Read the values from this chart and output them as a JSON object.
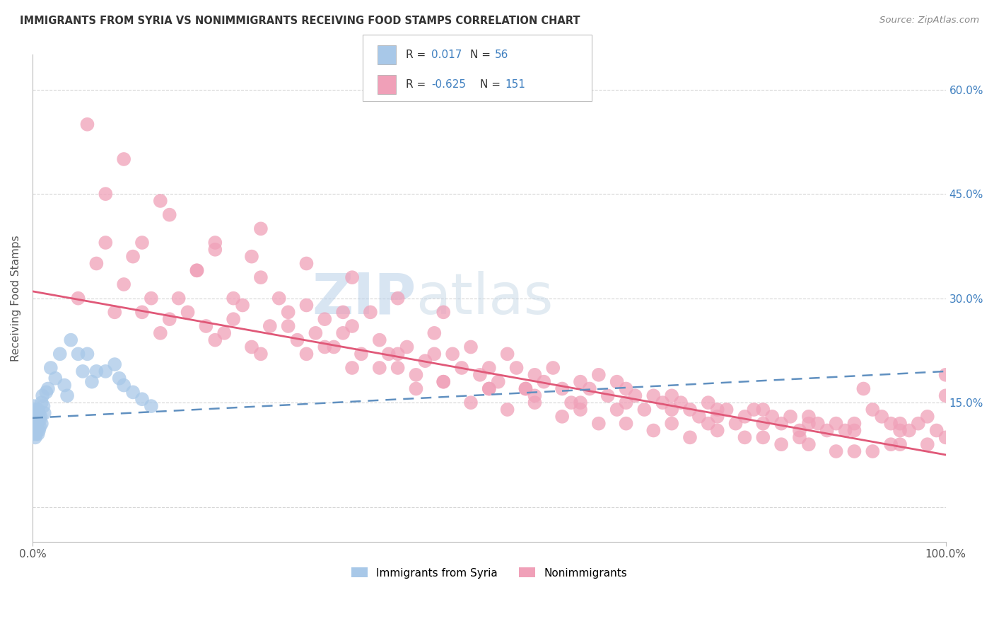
{
  "title": "IMMIGRANTS FROM SYRIA VS NONIMMIGRANTS RECEIVING FOOD STAMPS CORRELATION CHART",
  "source": "Source: ZipAtlas.com",
  "ylabel": "Receiving Food Stamps",
  "color_blue": "#A8C8E8",
  "color_pink": "#F0A0B8",
  "color_blue_line": "#6090C0",
  "color_pink_line": "#E05878",
  "background_color": "#FFFFFF",
  "grid_color": "#CCCCCC",
  "xlim": [
    0.0,
    1.0
  ],
  "ylim": [
    -0.05,
    0.65
  ],
  "ytick_vals": [
    0.0,
    0.15,
    0.3,
    0.45,
    0.6
  ],
  "right_ytick_labels": [
    "",
    "15.0%",
    "30.0%",
    "45.0%",
    "60.0%"
  ],
  "legend_color": "#4080C0",
  "watermark_zip_color": "#B8D4EC",
  "watermark_atlas_color": "#C8D8E8",
  "syria_x": [
    0.001,
    0.001,
    0.001,
    0.001,
    0.001,
    0.001,
    0.001,
    0.001,
    0.002,
    0.002,
    0.002,
    0.002,
    0.002,
    0.002,
    0.003,
    0.003,
    0.003,
    0.003,
    0.004,
    0.004,
    0.004,
    0.005,
    0.005,
    0.005,
    0.006,
    0.006,
    0.007,
    0.007,
    0.008,
    0.008,
    0.009,
    0.01,
    0.01,
    0.011,
    0.012,
    0.013,
    0.015,
    0.017,
    0.02,
    0.025,
    0.03,
    0.035,
    0.038,
    0.042,
    0.05,
    0.055,
    0.06,
    0.065,
    0.07,
    0.08,
    0.09,
    0.095,
    0.1,
    0.11,
    0.12,
    0.13
  ],
  "syria_y": [
    0.125,
    0.13,
    0.135,
    0.14,
    0.12,
    0.115,
    0.145,
    0.11,
    0.13,
    0.125,
    0.12,
    0.115,
    0.11,
    0.105,
    0.135,
    0.12,
    0.11,
    0.1,
    0.13,
    0.115,
    0.105,
    0.125,
    0.12,
    0.115,
    0.14,
    0.105,
    0.135,
    0.11,
    0.125,
    0.115,
    0.13,
    0.15,
    0.12,
    0.16,
    0.145,
    0.135,
    0.165,
    0.17,
    0.2,
    0.185,
    0.22,
    0.175,
    0.16,
    0.24,
    0.22,
    0.195,
    0.22,
    0.18,
    0.195,
    0.195,
    0.205,
    0.185,
    0.175,
    0.165,
    0.155,
    0.145
  ],
  "nonimm_x": [
    0.05,
    0.07,
    0.08,
    0.09,
    0.1,
    0.11,
    0.12,
    0.13,
    0.14,
    0.15,
    0.16,
    0.17,
    0.18,
    0.19,
    0.2,
    0.2,
    0.21,
    0.22,
    0.23,
    0.24,
    0.25,
    0.25,
    0.26,
    0.27,
    0.28,
    0.29,
    0.3,
    0.3,
    0.31,
    0.32,
    0.33,
    0.34,
    0.35,
    0.35,
    0.36,
    0.37,
    0.38,
    0.39,
    0.4,
    0.4,
    0.41,
    0.42,
    0.43,
    0.44,
    0.45,
    0.45,
    0.46,
    0.47,
    0.48,
    0.49,
    0.5,
    0.5,
    0.51,
    0.52,
    0.53,
    0.54,
    0.55,
    0.55,
    0.56,
    0.57,
    0.58,
    0.59,
    0.6,
    0.6,
    0.61,
    0.62,
    0.63,
    0.64,
    0.65,
    0.65,
    0.66,
    0.67,
    0.68,
    0.69,
    0.7,
    0.7,
    0.71,
    0.72,
    0.73,
    0.74,
    0.75,
    0.75,
    0.76,
    0.77,
    0.78,
    0.79,
    0.8,
    0.8,
    0.81,
    0.82,
    0.83,
    0.84,
    0.85,
    0.85,
    0.86,
    0.87,
    0.88,
    0.89,
    0.9,
    0.9,
    0.91,
    0.92,
    0.93,
    0.94,
    0.95,
    0.95,
    0.96,
    0.97,
    0.98,
    0.99,
    1.0,
    1.0,
    0.1,
    0.15,
    0.2,
    0.25,
    0.3,
    0.35,
    0.4,
    0.45,
    0.5,
    0.55,
    0.6,
    0.65,
    0.7,
    0.75,
    0.8,
    0.85,
    0.9,
    0.95,
    1.0,
    0.08,
    0.12,
    0.18,
    0.22,
    0.28,
    0.32,
    0.38,
    0.42,
    0.48,
    0.52,
    0.58,
    0.62,
    0.68,
    0.72,
    0.78,
    0.82,
    0.88,
    0.92,
    0.98,
    0.06,
    0.14,
    0.24,
    0.34,
    0.44,
    0.54,
    0.64,
    0.74,
    0.84,
    0.94
  ],
  "nonimm_y": [
    0.3,
    0.35,
    0.38,
    0.28,
    0.32,
    0.36,
    0.28,
    0.3,
    0.25,
    0.27,
    0.3,
    0.28,
    0.34,
    0.26,
    0.24,
    0.38,
    0.25,
    0.27,
    0.29,
    0.23,
    0.4,
    0.22,
    0.26,
    0.3,
    0.28,
    0.24,
    0.22,
    0.35,
    0.25,
    0.27,
    0.23,
    0.25,
    0.2,
    0.33,
    0.22,
    0.28,
    0.24,
    0.22,
    0.2,
    0.3,
    0.23,
    0.19,
    0.21,
    0.25,
    0.18,
    0.28,
    0.22,
    0.2,
    0.23,
    0.19,
    0.2,
    0.17,
    0.18,
    0.22,
    0.2,
    0.17,
    0.19,
    0.16,
    0.18,
    0.2,
    0.17,
    0.15,
    0.18,
    0.15,
    0.17,
    0.19,
    0.16,
    0.18,
    0.15,
    0.17,
    0.16,
    0.14,
    0.16,
    0.15,
    0.14,
    0.16,
    0.15,
    0.14,
    0.13,
    0.15,
    0.14,
    0.13,
    0.14,
    0.12,
    0.13,
    0.14,
    0.12,
    0.14,
    0.13,
    0.12,
    0.13,
    0.11,
    0.12,
    0.13,
    0.12,
    0.11,
    0.12,
    0.11,
    0.12,
    0.11,
    0.17,
    0.14,
    0.13,
    0.12,
    0.11,
    0.12,
    0.11,
    0.12,
    0.13,
    0.11,
    0.19,
    0.16,
    0.5,
    0.42,
    0.37,
    0.33,
    0.29,
    0.26,
    0.22,
    0.18,
    0.17,
    0.15,
    0.14,
    0.12,
    0.12,
    0.11,
    0.1,
    0.09,
    0.08,
    0.09,
    0.1,
    0.45,
    0.38,
    0.34,
    0.3,
    0.26,
    0.23,
    0.2,
    0.17,
    0.15,
    0.14,
    0.13,
    0.12,
    0.11,
    0.1,
    0.1,
    0.09,
    0.08,
    0.08,
    0.09,
    0.55,
    0.44,
    0.36,
    0.28,
    0.22,
    0.17,
    0.14,
    0.12,
    0.1,
    0.09
  ],
  "pink_line_x0": 0.0,
  "pink_line_y0": 0.31,
  "pink_line_x1": 1.0,
  "pink_line_y1": 0.075,
  "blue_line_x0": 0.0,
  "blue_line_y0": 0.128,
  "blue_line_x1": 1.0,
  "blue_line_y1": 0.195
}
